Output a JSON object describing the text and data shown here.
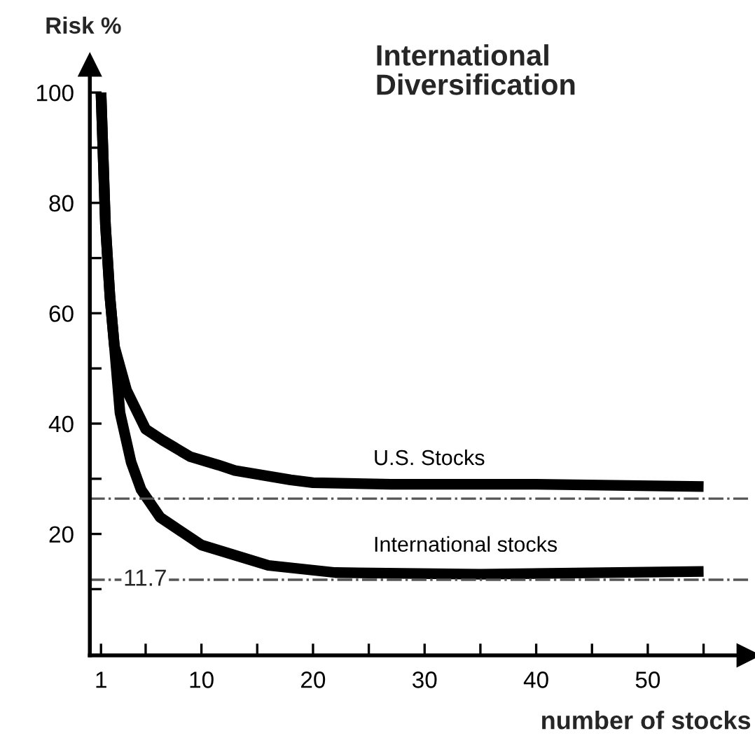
{
  "chart_data": {
    "type": "line",
    "title": "International\nDiversification",
    "xlabel": "number of stocks",
    "ylabel": "Risk %",
    "xlim": [
      0,
      59
    ],
    "ylim": [
      -2,
      105
    ],
    "xticks": [
      1,
      {
        "value": 5,
        "label": null
      },
      10,
      {
        "value": 15,
        "label": null
      },
      20,
      {
        "value": 25,
        "label": null
      },
      30,
      {
        "value": 35,
        "label": null
      },
      40,
      {
        "value": 45,
        "label": null
      },
      50,
      {
        "value": 55,
        "label": null
      }
    ],
    "yticks": [
      {
        "value": 10,
        "label": null
      },
      20,
      {
        "value": 30,
        "label": null
      },
      40,
      {
        "value": 50,
        "label": null
      },
      60,
      {
        "value": 70,
        "label": null
      },
      80,
      {
        "value": 90,
        "label": null
      },
      100
    ],
    "series": [
      {
        "name": "U.S. Stocks",
        "color": "#000000",
        "x": [
          1,
          1.4,
          1.8,
          2.2,
          3.3,
          5,
          6.5,
          9,
          11.5,
          13,
          18,
          20,
          27,
          40,
          55
        ],
        "values": [
          100,
          76,
          63,
          54,
          46,
          39,
          37,
          34,
          32.5,
          31.5,
          29.8,
          29.3,
          29,
          29,
          28.6
        ]
      },
      {
        "name": "International stocks",
        "color": "#000000",
        "x": [
          1,
          1.4,
          1.8,
          2.2,
          2.7,
          3.7,
          4.6,
          6.3,
          10,
          16,
          22,
          35,
          55
        ],
        "values": [
          100,
          76,
          63,
          54,
          42,
          33,
          28,
          23,
          18,
          14.3,
          13,
          12.7,
          13.2
        ]
      }
    ],
    "ref_lines": [
      {
        "axis": "y",
        "value": 26.4,
        "label": null,
        "color": "#555555",
        "line_style": "dashdot"
      },
      {
        "axis": "y",
        "value": 11.7,
        "label": "11.7",
        "color": "#555555",
        "line_style": "dashdot"
      }
    ],
    "grid": false,
    "legend": false,
    "marker": "none",
    "line_style": "solid"
  }
}
